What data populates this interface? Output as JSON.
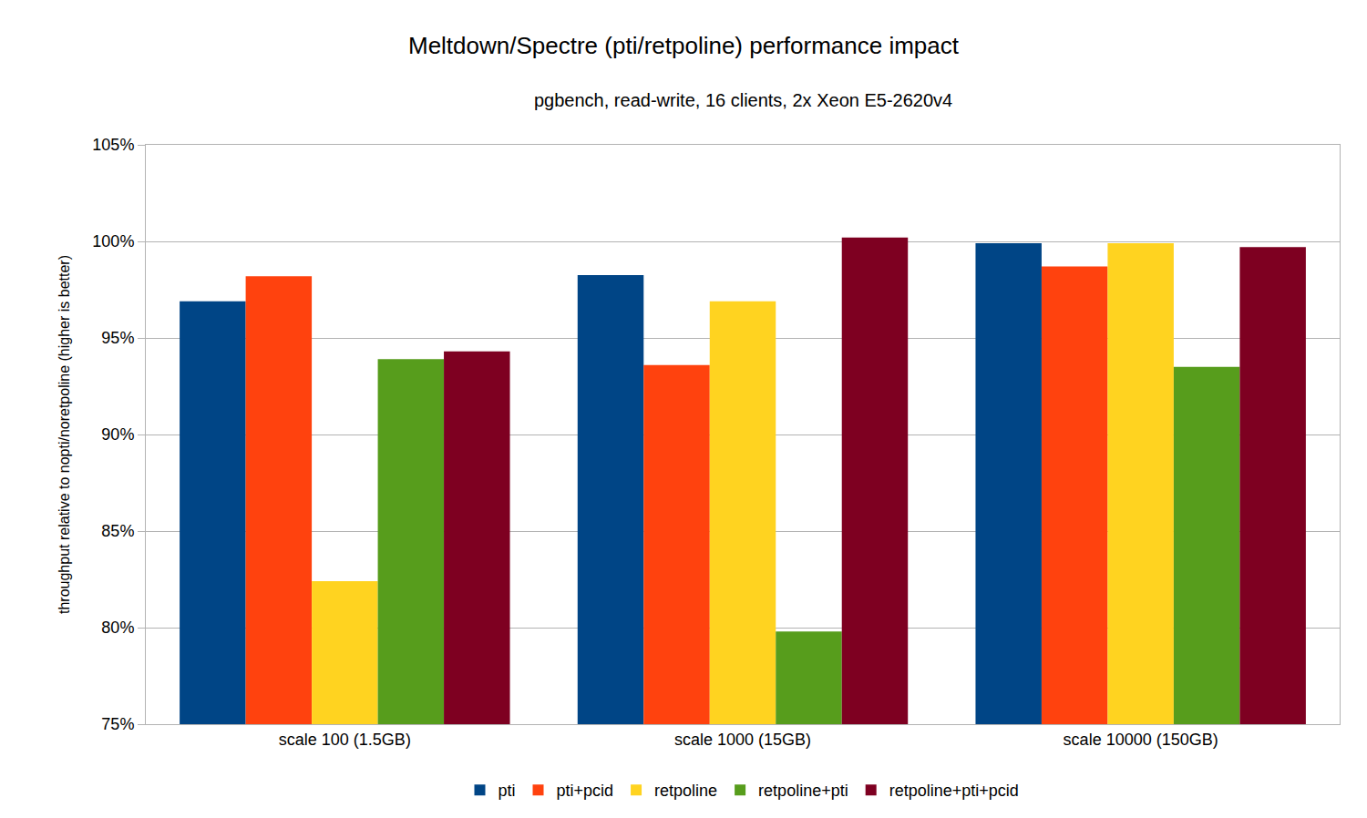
{
  "chart_data": {
    "type": "bar",
    "title": "Meltdown/Spectre (pti/retpoline) performance impact",
    "subtitle": "pgbench, read-write, 16 clients, 2x Xeon E5-2620v4",
    "y_label": "throughput relative to nopti/noretpoline (higher is better)",
    "categories": [
      "scale 100 (1.5GB)",
      "scale 1000 (15GB)",
      "scale 10000 (150GB)"
    ],
    "series": [
      {
        "name": "pti",
        "color": "#004586",
        "values": [
          96.9,
          98.25,
          99.9
        ]
      },
      {
        "name": "pti+pcid",
        "color": "#ff420e",
        "values": [
          98.2,
          93.6,
          98.7
        ]
      },
      {
        "name": "retpoline",
        "color": "#ffd320",
        "values": [
          82.4,
          96.9,
          99.9
        ]
      },
      {
        "name": "retpoline+pti",
        "color": "#579d1c",
        "values": [
          93.9,
          79.8,
          93.5
        ]
      },
      {
        "name": "retpoline+pti+pcid",
        "color": "#7e0021",
        "values": [
          94.3,
          100.2,
          99.7
        ]
      }
    ],
    "ylim": [
      75,
      105
    ],
    "yticks": [
      {
        "value": 75,
        "label": "75%"
      },
      {
        "value": 80,
        "label": "80%"
      },
      {
        "value": 85,
        "label": "85%"
      },
      {
        "value": 90,
        "label": "90%"
      },
      {
        "value": 95,
        "label": "95%"
      },
      {
        "value": 100,
        "label": "100%"
      },
      {
        "value": 105,
        "label": "105%"
      }
    ],
    "grid": true,
    "legend": "bottom"
  }
}
